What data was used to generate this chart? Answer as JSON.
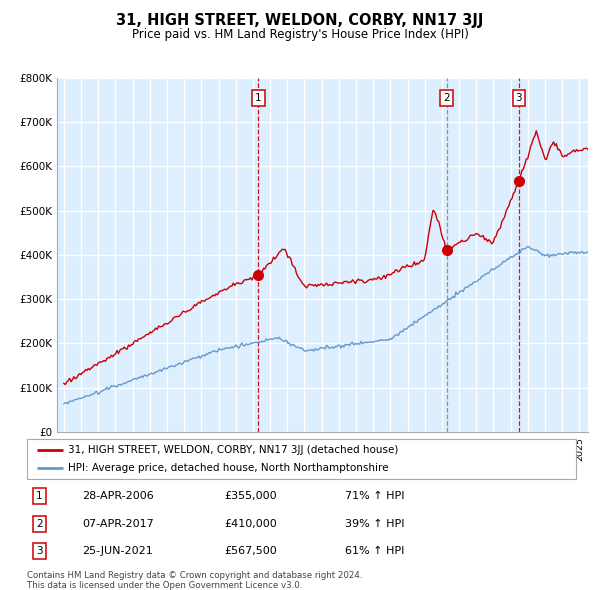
{
  "title": "31, HIGH STREET, WELDON, CORBY, NN17 3JJ",
  "subtitle": "Price paid vs. HM Land Registry's House Price Index (HPI)",
  "legend_line1": "31, HIGH STREET, WELDON, CORBY, NN17 3JJ (detached house)",
  "legend_line2": "HPI: Average price, detached house, North Northamptonshire",
  "footer1": "Contains HM Land Registry data © Crown copyright and database right 2024.",
  "footer2": "This data is licensed under the Open Government Licence v3.0.",
  "transactions": [
    {
      "num": 1,
      "date": "28-APR-2006",
      "price": 355000,
      "year": 2006.32,
      "hpi_change": "71% ↑ HPI"
    },
    {
      "num": 2,
      "date": "07-APR-2017",
      "price": 410000,
      "year": 2017.27,
      "hpi_change": "39% ↑ HPI"
    },
    {
      "num": 3,
      "date": "25-JUN-2021",
      "price": 567500,
      "year": 2021.48,
      "hpi_change": "61% ↑ HPI"
    }
  ],
  "red_line_color": "#cc0000",
  "blue_line_color": "#6699cc",
  "bg_color": "#ddeeff",
  "grid_color": "#ffffff",
  "vline2_color": "#888888",
  "title_fontsize": 11,
  "subtitle_fontsize": 9
}
